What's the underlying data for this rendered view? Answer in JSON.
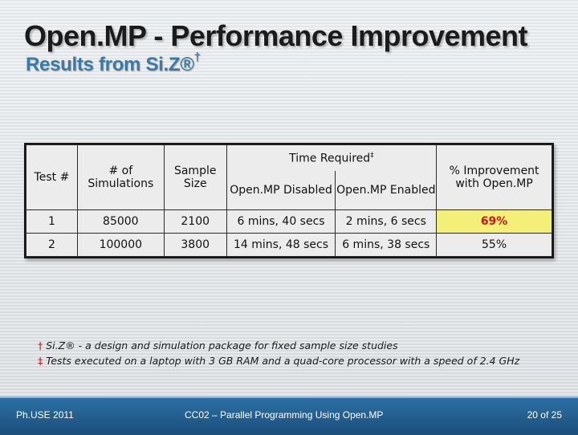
{
  "slide": {
    "title": "Open.MP - Performance Improvement",
    "subtitle": "Results from Si.Z®",
    "subtitle_mark": "†"
  },
  "table": {
    "headers": {
      "test": "Test #",
      "simulations": "# of Simulations",
      "sample_size": "Sample Size",
      "time_required": "Time Required",
      "time_required_mark": "‡",
      "openmp_disabled": "Open.MP Disabled",
      "openmp_enabled": "Open.MP Enabled",
      "improvement": "% Improvement with Open.MP"
    },
    "rows": [
      {
        "test": "1",
        "simulations": "85000",
        "sample_size": "2100",
        "disabled": "6 mins, 40 secs",
        "enabled": "2 mins, 6 secs",
        "improvement": "69%"
      },
      {
        "test": "2",
        "simulations": "100000",
        "sample_size": "3800",
        "disabled": "14 mins, 48 secs",
        "enabled": "6 mins, 38 secs",
        "improvement": "55%"
      }
    ]
  },
  "footnotes": {
    "note1_mark": "†",
    "note1_text": " Si.Z® - a design and simulation package for fixed sample size studies",
    "note2_mark": "‡",
    "note2_text": " Tests executed on a laptop with 3 GB RAM and a quad-core processor with a speed of 2.4 GHz"
  },
  "footer": {
    "left": "Ph.USE 2011",
    "center": "CC02 – Parallel Programming Using Open.MP",
    "right": "20 of 25"
  },
  "colors": {
    "highlight_bg": "#f3ef78",
    "highlight_text": "#d0141a",
    "footer_bar": "#2c6fa4",
    "subtitle": "#3a7aa8"
  }
}
